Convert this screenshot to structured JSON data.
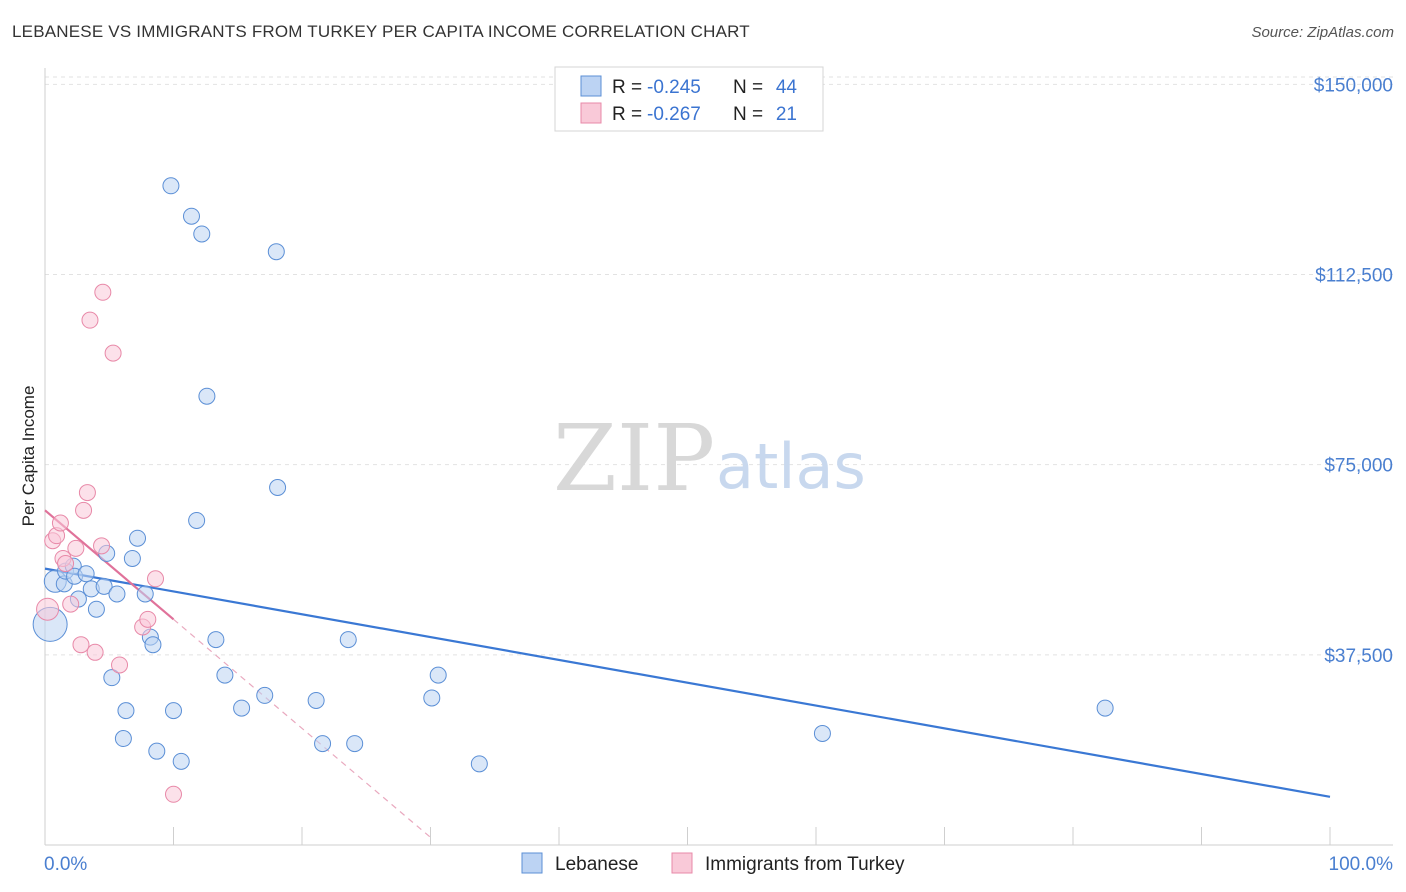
{
  "title": "LEBANESE VS IMMIGRANTS FROM TURKEY PER CAPITA INCOME CORRELATION CHART",
  "source": "Source: ZipAtlas.com",
  "watermark": {
    "part1": "ZIP",
    "part2": "atlas"
  },
  "legend": {
    "rows": [
      {
        "r_label": "R =",
        "r_value": "-0.245",
        "n_label": "N =",
        "n_value": "44"
      },
      {
        "r_label": "R =",
        "r_value": "-0.267",
        "n_label": "N =",
        "n_value": "21"
      }
    ]
  },
  "bottom_legend": [
    "Lebanese",
    "Immigrants from Turkey"
  ],
  "chart_data": {
    "type": "scatter",
    "title": "LEBANESE VS IMMIGRANTS FROM TURKEY PER CAPITA INCOME CORRELATION CHART",
    "xlabel": "",
    "ylabel": "Per Capita Income",
    "xlim": [
      0,
      100
    ],
    "ylim": [
      0,
      155000
    ],
    "x_tick_labels": [
      "0.0%",
      "100.0%"
    ],
    "y_ticks": [
      37500,
      75000,
      112500,
      150000
    ],
    "y_tick_labels": [
      "$37,500",
      "$75,000",
      "$112,500",
      "$150,000"
    ],
    "grid": true,
    "legend_position": "top-center",
    "colors": {
      "Lebanese": "#5b8fd6",
      "Immigrants from Turkey": "#e889a8"
    },
    "series": [
      {
        "name": "Lebanese",
        "R": -0.245,
        "N": 44,
        "points": [
          [
            0.4,
            43500
          ],
          [
            0.8,
            52000
          ],
          [
            1.5,
            51500
          ],
          [
            1.6,
            54000
          ],
          [
            2.2,
            55000
          ],
          [
            2.3,
            53000
          ],
          [
            2.6,
            48500
          ],
          [
            3.2,
            53500
          ],
          [
            3.6,
            50500
          ],
          [
            4.0,
            46500
          ],
          [
            4.6,
            51000
          ],
          [
            4.8,
            57500
          ],
          [
            5.2,
            33000
          ],
          [
            5.6,
            49500
          ],
          [
            6.3,
            26500
          ],
          [
            6.1,
            21000
          ],
          [
            6.8,
            56500
          ],
          [
            7.2,
            60500
          ],
          [
            7.8,
            49500
          ],
          [
            8.2,
            41000
          ],
          [
            8.4,
            39500
          ],
          [
            8.7,
            18500
          ],
          [
            9.8,
            130000
          ],
          [
            10.0,
            26500
          ],
          [
            10.6,
            16500
          ],
          [
            11.4,
            124000
          ],
          [
            11.8,
            64000
          ],
          [
            12.2,
            120500
          ],
          [
            12.6,
            88500
          ],
          [
            13.3,
            40500
          ],
          [
            14.0,
            33500
          ],
          [
            15.3,
            27000
          ],
          [
            17.1,
            29500
          ],
          [
            18.0,
            117000
          ],
          [
            18.1,
            70500
          ],
          [
            21.1,
            28500
          ],
          [
            21.6,
            20000
          ],
          [
            23.6,
            40500
          ],
          [
            24.1,
            20000
          ],
          [
            30.1,
            29000
          ],
          [
            30.6,
            33500
          ],
          [
            33.8,
            16000
          ],
          [
            60.5,
            22000
          ],
          [
            82.5,
            27000
          ]
        ]
      },
      {
        "name": "Immigrants from Turkey",
        "R": -0.267,
        "N": 21,
        "points": [
          [
            0.2,
            46500
          ],
          [
            0.6,
            60000
          ],
          [
            0.9,
            61000
          ],
          [
            1.2,
            63500
          ],
          [
            1.4,
            56500
          ],
          [
            1.6,
            55500
          ],
          [
            2.0,
            47500
          ],
          [
            2.4,
            58500
          ],
          [
            2.8,
            39500
          ],
          [
            3.0,
            66000
          ],
          [
            3.3,
            69500
          ],
          [
            3.5,
            103500
          ],
          [
            3.9,
            38000
          ],
          [
            4.4,
            59000
          ],
          [
            4.5,
            109000
          ],
          [
            5.3,
            97000
          ],
          [
            5.8,
            35500
          ],
          [
            7.6,
            43000
          ],
          [
            8.0,
            44500
          ],
          [
            8.6,
            52500
          ],
          [
            10.0,
            10000
          ]
        ]
      }
    ],
    "trend_lines": [
      {
        "series": "Lebanese",
        "x": [
          0,
          100
        ],
        "y": [
          54500,
          9500
        ]
      },
      {
        "series": "Immigrants from Turkey",
        "x": [
          0,
          10
        ],
        "y": [
          66000,
          44500
        ],
        "dashed_extension": [
          10,
          30
        ]
      }
    ]
  }
}
